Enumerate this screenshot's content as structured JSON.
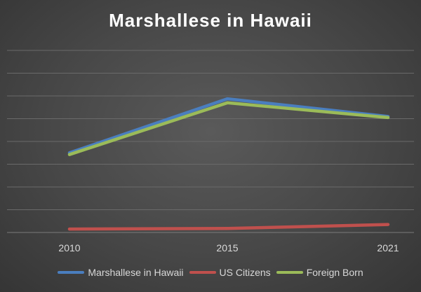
{
  "chart_data": {
    "type": "line",
    "title": "Marshallese in Hawaii",
    "xlabel": "",
    "ylabel": "",
    "categories": [
      "2010",
      "2015",
      "2021"
    ],
    "ylim": [
      0,
      16000
    ],
    "grid": true,
    "legend": "bottom",
    "series": [
      {
        "name": "Marshallese in Hawaii",
        "color": "#4a7ebf",
        "values": [
          7000,
          11750,
          10200
        ]
      },
      {
        "name": "US Citizens",
        "color": "#c0504d",
        "values": [
          300,
          350,
          700
        ]
      },
      {
        "name": "Foreign Born",
        "color": "#9bbb59",
        "values": [
          6850,
          11400,
          10100
        ]
      }
    ]
  }
}
